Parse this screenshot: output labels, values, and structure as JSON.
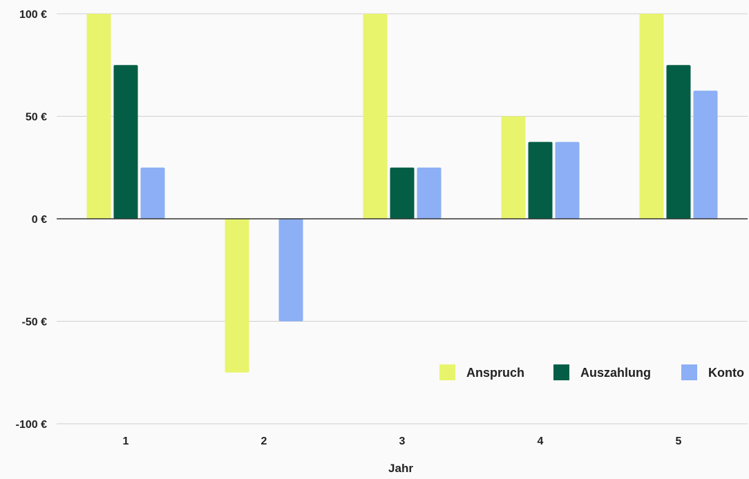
{
  "chart_data": {
    "type": "bar",
    "title": "",
    "xlabel": "Jahr",
    "ylabel": "",
    "categories": [
      "1",
      "2",
      "3",
      "4",
      "5"
    ],
    "yticks": [
      "100 €",
      "50 €",
      "0 €",
      "-50 €",
      "-100 €"
    ],
    "ytick_values": [
      100,
      50,
      0,
      -50,
      -100
    ],
    "ylim": [
      -100,
      100
    ],
    "grid": true,
    "legend_position": "bottom-right",
    "series": [
      {
        "name": "Anspruch",
        "color": "#e8f46c",
        "values": [
          100,
          -75,
          100,
          50,
          100
        ]
      },
      {
        "name": "Auszahlung",
        "color": "#035e45",
        "values": [
          75,
          0,
          25,
          37.5,
          75
        ]
      },
      {
        "name": "Konto",
        "color": "#8caff5",
        "values": [
          25,
          -50,
          25,
          37.5,
          62.5
        ]
      }
    ]
  }
}
